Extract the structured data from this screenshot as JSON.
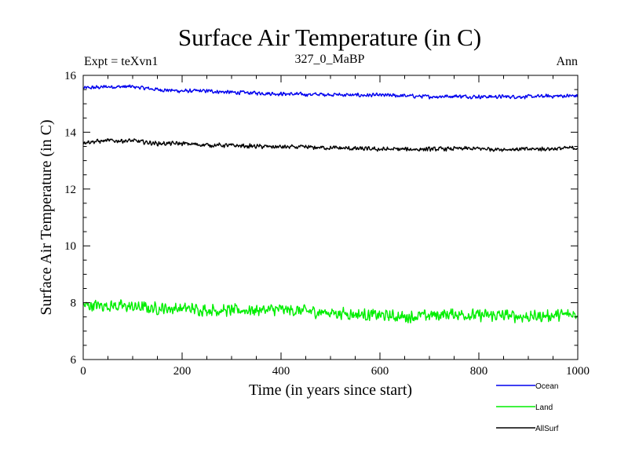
{
  "chart_data": {
    "type": "line",
    "title": "Surface Air Temperature (in C)",
    "subtitle": "327_0_MaBP",
    "left_label": "Expt = teXvn1",
    "right_label": "Ann",
    "xlabel": "Time (in years since start)",
    "ylabel": "Surface Air Temperature (in C)",
    "xlim": [
      0,
      1000
    ],
    "ylim": [
      6,
      16
    ],
    "x_ticks": [
      0,
      200,
      400,
      600,
      800,
      1000
    ],
    "y_ticks": [
      6,
      8,
      10,
      12,
      14,
      16
    ],
    "x_minor_step": 50,
    "y_minor_step": 0.5,
    "grid": false,
    "legend_position": "bottom-right",
    "series": [
      {
        "name": "Ocean",
        "color": "#0000ee",
        "x": [
          0,
          50,
          100,
          150,
          200,
          250,
          300,
          350,
          400,
          450,
          500,
          550,
          600,
          650,
          700,
          750,
          800,
          850,
          900,
          950,
          1000
        ],
        "values": [
          15.55,
          15.6,
          15.6,
          15.5,
          15.45,
          15.45,
          15.4,
          15.38,
          15.35,
          15.33,
          15.33,
          15.3,
          15.3,
          15.28,
          15.25,
          15.27,
          15.25,
          15.25,
          15.25,
          15.27,
          15.28
        ],
        "noise": 0.08
      },
      {
        "name": "Land",
        "color": "#00ee00",
        "x": [
          0,
          50,
          100,
          150,
          200,
          250,
          300,
          350,
          400,
          450,
          500,
          550,
          600,
          650,
          700,
          750,
          800,
          850,
          900,
          950,
          1000
        ],
        "values": [
          7.9,
          7.9,
          7.85,
          7.8,
          7.8,
          7.75,
          7.72,
          7.75,
          7.75,
          7.7,
          7.65,
          7.6,
          7.55,
          7.5,
          7.55,
          7.6,
          7.55,
          7.55,
          7.5,
          7.55,
          7.6
        ],
        "noise": 0.25
      },
      {
        "name": "AllSurf",
        "color": "#000000",
        "x": [
          0,
          50,
          100,
          150,
          200,
          250,
          300,
          350,
          400,
          450,
          500,
          550,
          600,
          650,
          700,
          750,
          800,
          850,
          900,
          950,
          1000
        ],
        "values": [
          13.65,
          13.7,
          13.7,
          13.6,
          13.6,
          13.55,
          13.53,
          13.5,
          13.48,
          13.47,
          13.45,
          13.42,
          13.4,
          13.4,
          13.4,
          13.42,
          13.42,
          13.4,
          13.4,
          13.42,
          13.45
        ],
        "noise": 0.09
      }
    ]
  }
}
